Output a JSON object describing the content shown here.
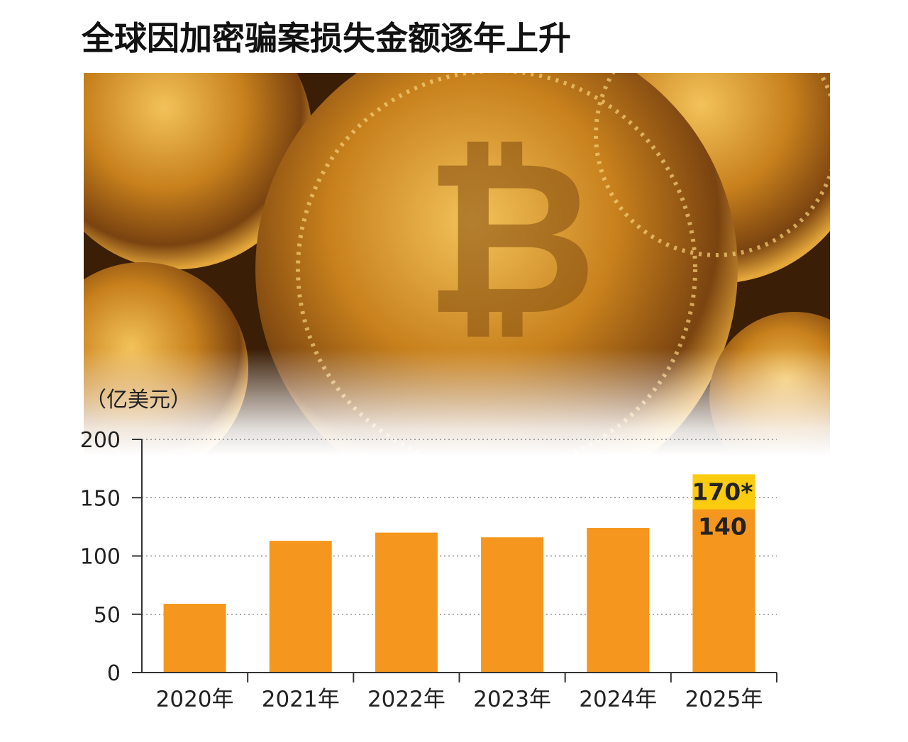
{
  "chart_data": {
    "type": "bar",
    "title": "全球因加密骗案损失金额逐年上升",
    "y_label": "（亿美元）",
    "categories": [
      "2020年",
      "2021年",
      "2022年",
      "2023年",
      "2024年",
      "2025年"
    ],
    "series": [
      {
        "color": "#f5971f",
        "values": [
          59,
          113,
          120,
          116,
          124,
          140
        ],
        "value_labels": [
          null,
          null,
          null,
          null,
          null,
          "140"
        ]
      },
      {
        "color": "#fbcb10",
        "values": [
          null,
          null,
          null,
          null,
          null,
          170
        ],
        "value_labels": [
          null,
          null,
          null,
          null,
          null,
          "170*"
        ]
      }
    ],
    "ylim": [
      0,
      200
    ],
    "yticks": [
      0,
      50,
      100,
      150,
      200
    ],
    "grid": true
  }
}
